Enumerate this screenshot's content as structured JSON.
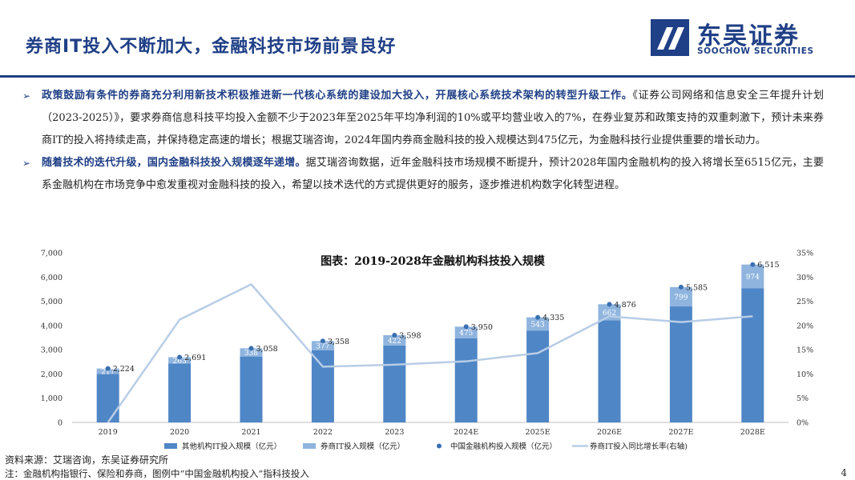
{
  "header": {
    "title": "券商IT投入不断加大，金融科技市场前景良好",
    "logo_cn": "东吴证券",
    "logo_en": "SOOCHOW SECURITIES"
  },
  "bullets": [
    {
      "bold": "政策鼓励有条件的券商充分利用新技术积极推进新一代核心系统的建设加大投入，开展核心系统技术架构的转型升级工作。",
      "text": "《证券公司网络和信息安全三年提升计划（2023-2025）》，要求券商信息科技平均投入金额不少于2023年至2025年平均净利润的10%或平均营业收入的7%，在券业复苏和政策支持的双重刺激下，预计未来券商IT的投入将持续走高，并保持稳定高速的增长；根据艾瑞咨询，2024年国内券商金融科技的投入规模达到475亿元，为金融科技行业提供重要的增长动力。"
    },
    {
      "bold": "随着技术的迭代升级，国内金融科技投入规模逐年递增。",
      "text": "据艾瑞咨询数据，近年金融科技市场规模不断提升，预计2028年国内金融机构的投入将增长至6515亿元，主要系金融机构在市场竞争中愈发重视对金融科技的投入，希望以技术迭代的方式提供更好的服务，逐步推进机构数字化转型进程。"
    }
  ],
  "chart_data": {
    "type": "bar",
    "title": "图表：2019-2028年金融机构科技投入规模",
    "categories": [
      "2019",
      "2020",
      "2021",
      "2022",
      "2023",
      "2024E",
      "2025E",
      "2026E",
      "2027E",
      "2028E"
    ],
    "series": [
      {
        "name": "其他机构IT投入规模（亿元）",
        "type": "bar",
        "stack": "total",
        "color": "#4f86c6",
        "values": [
          2007,
          2428,
          2720,
          2981,
          3176,
          3475,
          3792,
          4214,
          4786,
          5541
        ]
      },
      {
        "name": "券商IT投入规模（亿元）",
        "type": "bar",
        "stack": "total",
        "color": "#8fb4de",
        "values": [
          217,
          263,
          338,
          377,
          422,
          475,
          543,
          662,
          799,
          974
        ]
      },
      {
        "name": "中国金融机构投入规模（亿元）",
        "type": "scatter",
        "color": "#3a6fb0",
        "values": [
          2224,
          2691,
          3058,
          3358,
          3598,
          3950,
          4335,
          4876,
          5585,
          6515
        ]
      },
      {
        "name": "券商IT投入同比增长率(右轴)",
        "type": "line",
        "axis": "right",
        "color": "#b8cde6",
        "values": [
          0.0,
          21.2,
          28.5,
          11.5,
          11.9,
          12.6,
          14.3,
          21.9,
          20.7,
          21.9
        ]
      }
    ],
    "yticks": [
      "0",
      "1,000",
      "2,000",
      "3,000",
      "4,000",
      "5,000",
      "6,000",
      "7,000"
    ],
    "y2ticks": [
      "0%",
      "5%",
      "10%",
      "15%",
      "20%",
      "25%",
      "30%",
      "35%"
    ],
    "ylim": [
      0,
      7000
    ],
    "y2lim": [
      0,
      35
    ],
    "total_labels": [
      "2,224",
      "2,691",
      "3,058",
      "3,358",
      "3,598",
      "3,950",
      "4,335",
      "4,876",
      "5,585",
      "6,515"
    ],
    "broker_labels": [
      "217",
      "263",
      "338",
      "377",
      "422",
      "475",
      "543",
      "662",
      "799",
      "974"
    ],
    "legend_position": "bottom",
    "grid": false
  },
  "footer": {
    "source": "资料来源：艾瑞咨询，东吴证券研究所",
    "note": "注：金融机构指银行、保险和券商，图例中“中国金融机构投入”指科技投入",
    "page": "4"
  }
}
